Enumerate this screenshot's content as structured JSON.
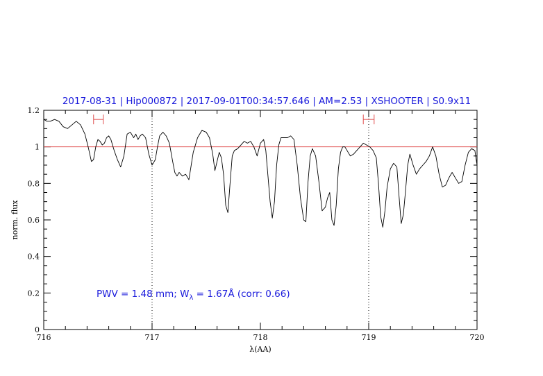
{
  "chart_data": {
    "type": "line",
    "title": "2017-08-31 | Hip000872 | 2017-09-01T00:34:57.646 | AM=2.53 | XSHOOTER | S0.9x11",
    "xlabel": "λ(AA)",
    "ylabel": "norm. flux",
    "xlim": [
      716,
      720
    ],
    "ylim": [
      0,
      1.2
    ],
    "x_ticks": [
      "716",
      "717",
      "718",
      "719",
      "720"
    ],
    "y_ticks": [
      "0",
      "0.2",
      "0.4",
      "0.6",
      "0.8",
      "1",
      "1.2"
    ],
    "x_tick_values": [
      716,
      717,
      718,
      719,
      720
    ],
    "y_tick_values": [
      0,
      0.2,
      0.4,
      0.6,
      0.8,
      1.0,
      1.2
    ],
    "grid": false,
    "reference_line": {
      "y": 1.0,
      "color": "#e05050"
    },
    "vertical_markers": [
      {
        "x": 717.0,
        "style": "dotted",
        "color": "#000000"
      },
      {
        "x": 719.0,
        "style": "dotted",
        "color": "#000000"
      }
    ],
    "intervals": [
      {
        "x_start": 716.46,
        "x_end": 716.55,
        "y": 1.15,
        "color": "#e05050"
      },
      {
        "x_start": 718.95,
        "x_end": 719.05,
        "y": 1.15,
        "color": "#e05050"
      }
    ],
    "annotation": {
      "prefix": "PWV = 1.48 mm; W",
      "subscript": "λ",
      "suffix": " = 1.67Å (corr: 0.66)"
    },
    "series": [
      {
        "color": "#000000",
        "x": [
          716.0,
          716.03,
          716.06,
          716.1,
          716.14,
          716.18,
          716.22,
          716.26,
          716.3,
          716.34,
          716.38,
          716.41,
          716.44,
          716.46,
          716.48,
          716.5,
          716.52,
          716.54,
          716.56,
          716.58,
          716.6,
          716.62,
          716.65,
          716.68,
          716.71,
          716.74,
          716.77,
          716.8,
          716.83,
          716.85,
          716.87,
          716.89,
          716.91,
          716.94,
          716.97,
          717.0,
          717.03,
          717.05,
          717.07,
          717.1,
          717.13,
          717.16,
          717.19,
          717.21,
          717.23,
          717.25,
          717.28,
          717.31,
          717.34,
          717.38,
          717.42,
          717.46,
          717.5,
          717.53,
          717.56,
          717.58,
          717.6,
          717.62,
          717.64,
          717.66,
          717.68,
          717.7,
          717.72,
          717.74,
          717.76,
          717.79,
          717.82,
          717.85,
          717.88,
          717.91,
          717.94,
          717.97,
          718.0,
          718.03,
          718.05,
          718.07,
          718.09,
          718.11,
          718.13,
          718.15,
          718.17,
          718.19,
          718.22,
          718.25,
          718.28,
          718.31,
          718.34,
          718.37,
          718.4,
          718.42,
          718.44,
          718.46,
          718.48,
          718.51,
          718.54,
          718.57,
          718.6,
          718.62,
          718.64,
          718.66,
          718.68,
          718.7,
          718.72,
          718.74,
          718.76,
          718.78,
          718.8,
          718.83,
          718.86,
          718.89,
          718.92,
          718.95,
          718.98,
          719.01,
          719.04,
          719.07,
          719.09,
          719.11,
          719.13,
          719.15,
          719.17,
          719.2,
          719.23,
          719.26,
          719.28,
          719.3,
          719.32,
          719.34,
          719.36,
          719.38,
          719.41,
          719.44,
          719.47,
          719.5,
          719.53,
          719.56,
          719.59,
          719.62,
          719.65,
          719.68,
          719.71,
          719.74,
          719.77,
          719.8,
          719.83,
          719.86,
          719.89,
          719.92,
          719.95,
          719.98,
          720.0
        ],
        "y": [
          1.15,
          1.14,
          1.14,
          1.15,
          1.14,
          1.11,
          1.1,
          1.12,
          1.14,
          1.12,
          1.07,
          1.0,
          0.92,
          0.93,
          1.0,
          1.04,
          1.03,
          1.01,
          1.02,
          1.05,
          1.06,
          1.04,
          0.98,
          0.93,
          0.89,
          0.95,
          1.07,
          1.08,
          1.05,
          1.07,
          1.04,
          1.06,
          1.07,
          1.05,
          0.96,
          0.9,
          0.93,
          1.0,
          1.06,
          1.08,
          1.06,
          1.02,
          0.92,
          0.86,
          0.84,
          0.86,
          0.84,
          0.85,
          0.82,
          0.97,
          1.05,
          1.09,
          1.08,
          1.05,
          0.96,
          0.87,
          0.92,
          0.97,
          0.94,
          0.85,
          0.68,
          0.64,
          0.8,
          0.95,
          0.98,
          0.99,
          1.01,
          1.03,
          1.02,
          1.03,
          1.0,
          0.95,
          1.02,
          1.04,
          0.98,
          0.84,
          0.7,
          0.61,
          0.7,
          0.9,
          1.01,
          1.05,
          1.05,
          1.05,
          1.06,
          1.04,
          0.9,
          0.72,
          0.6,
          0.59,
          0.81,
          0.95,
          0.99,
          0.95,
          0.81,
          0.65,
          0.67,
          0.72,
          0.75,
          0.6,
          0.57,
          0.68,
          0.88,
          0.97,
          1.0,
          1.0,
          0.98,
          0.95,
          0.96,
          0.98,
          1.0,
          1.02,
          1.01,
          1.0,
          0.98,
          0.94,
          0.8,
          0.62,
          0.56,
          0.65,
          0.78,
          0.88,
          0.91,
          0.89,
          0.73,
          0.58,
          0.63,
          0.76,
          0.9,
          0.96,
          0.9,
          0.85,
          0.88,
          0.9,
          0.92,
          0.95,
          1.0,
          0.95,
          0.85,
          0.78,
          0.79,
          0.83,
          0.86,
          0.83,
          0.8,
          0.81,
          0.9,
          0.97,
          0.99,
          0.98,
          0.9
        ]
      }
    ]
  }
}
